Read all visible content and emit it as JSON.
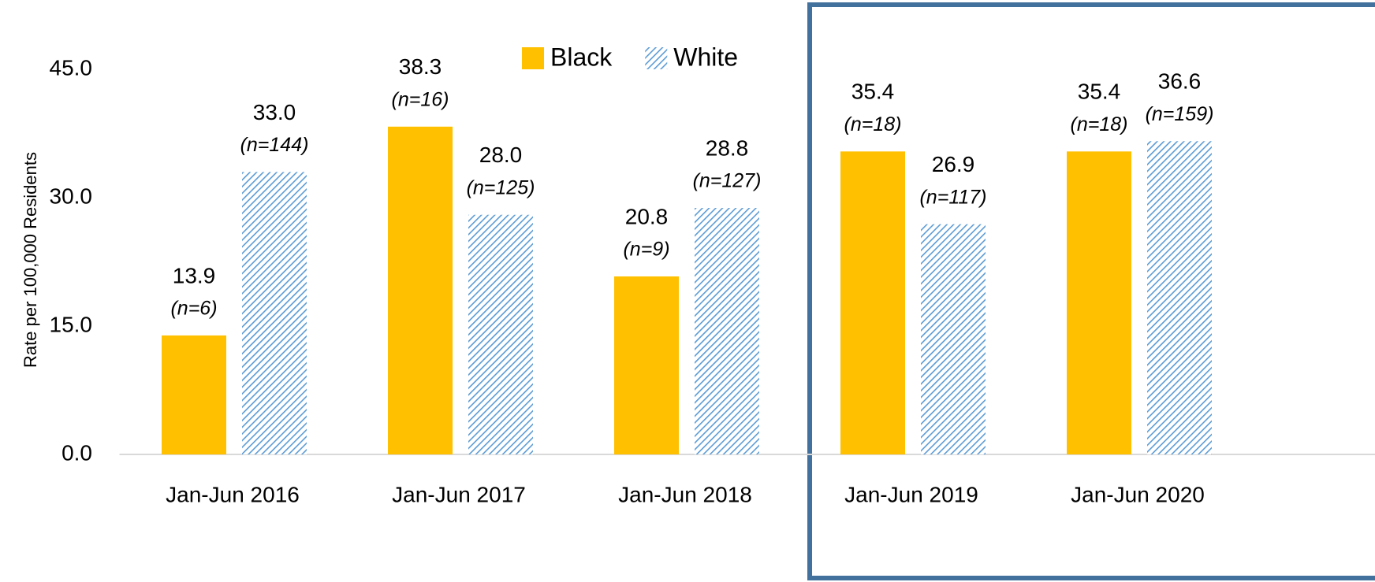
{
  "chart_data": {
    "type": "bar",
    "y_axis_label": "Rate per 100,000 Residents",
    "categories": [
      "Jan-Jun 2016",
      "Jan-Jun 2017",
      "Jan-Jun 2018",
      "Jan-Jun 2019",
      "Jan-Jun 2020"
    ],
    "series": [
      {
        "name": "Black",
        "color": "#ffc000",
        "pattern": "solid",
        "values": [
          13.9,
          38.3,
          20.8,
          35.4,
          35.4
        ],
        "value_labels": [
          "13.9",
          "38.3",
          "20.8",
          "35.4",
          "35.4"
        ],
        "sample_labels": [
          "(n=6)",
          "(n=16)",
          "(n=9)",
          "(n=18)",
          "(n=18)"
        ]
      },
      {
        "name": "White",
        "color": "#5b9bd5",
        "pattern": "hatch",
        "values": [
          33.0,
          28.0,
          28.8,
          26.9,
          36.6
        ],
        "value_labels": [
          "33.0",
          "28.0",
          "28.8",
          "26.9",
          "36.6"
        ],
        "sample_labels": [
          "(n=144)",
          "(n=125)",
          "(n=127)",
          "(n=117)",
          "(n=159)"
        ]
      }
    ],
    "ylim": [
      0,
      45
    ],
    "yticks": [
      {
        "value": 0,
        "label": "0.0"
      },
      {
        "value": 15,
        "label": "15.0"
      },
      {
        "value": 30,
        "label": "30.0"
      },
      {
        "value": 45,
        "label": "45.0"
      }
    ],
    "grid": false,
    "legend": "top"
  }
}
